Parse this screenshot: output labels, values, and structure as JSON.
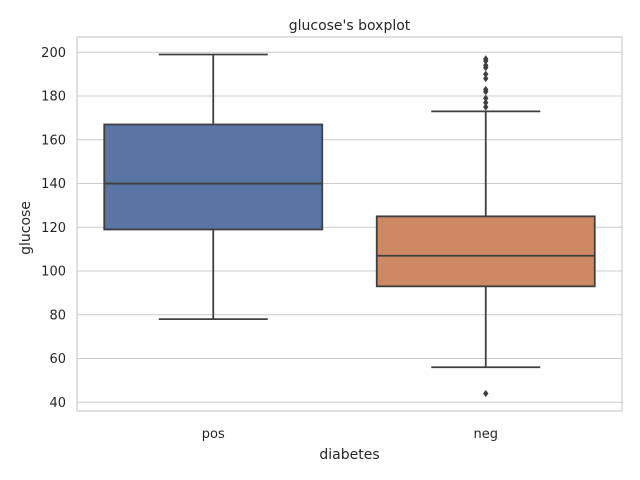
{
  "chart_data": {
    "type": "boxplot",
    "title": "glucose's boxplot",
    "xlabel": "diabetes",
    "ylabel": "glucose",
    "categories": [
      "pos",
      "neg"
    ],
    "ylim": [
      36,
      207
    ],
    "yticks": [
      40,
      60,
      80,
      100,
      120,
      140,
      160,
      180,
      200
    ],
    "grid": true,
    "colors": [
      "#5875a4",
      "#cc8963"
    ],
    "boxes": [
      {
        "category": "pos",
        "whisker_low": 78,
        "q1": 119,
        "median": 140,
        "q3": 167,
        "whisker_high": 199,
        "outliers": []
      },
      {
        "category": "neg",
        "whisker_low": 56,
        "q1": 93,
        "median": 107,
        "q3": 125,
        "whisker_high": 173,
        "outliers": [
          44,
          175,
          177,
          179,
          182,
          183,
          188,
          190,
          193,
          194,
          196,
          197
        ]
      }
    ]
  }
}
